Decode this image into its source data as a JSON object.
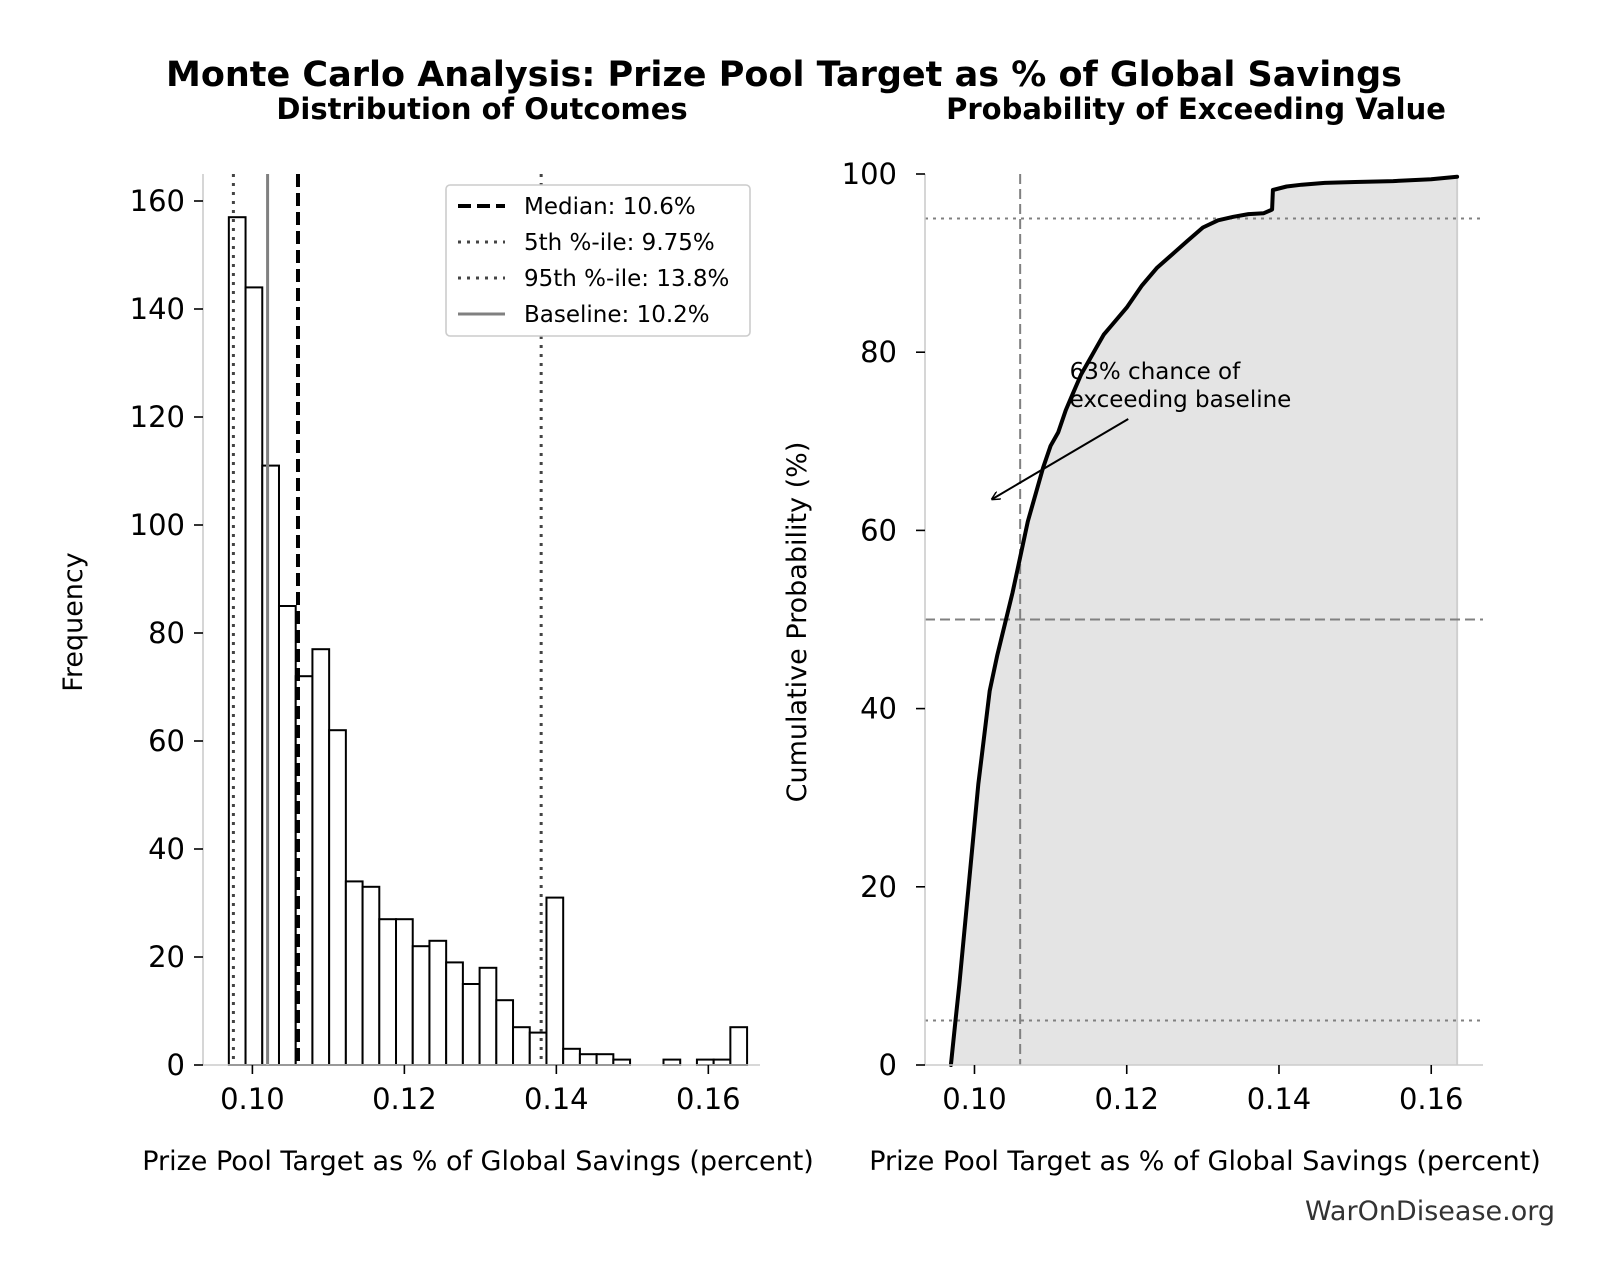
{
  "figure": {
    "title": "Monte Carlo Analysis: Prize Pool Target as % of Global Savings",
    "watermark": "WarOnDisease.org"
  },
  "chart_data": [
    {
      "type": "bar",
      "kind": "histogram",
      "title": "Distribution of Outcomes",
      "xlabel": "Prize Pool Target as % of Global Savings (percent)",
      "ylabel": "Frequency",
      "xlim": [
        0.0935,
        0.1668
      ],
      "ylim": [
        0,
        165
      ],
      "x_ticks": [
        0.1,
        0.12,
        0.14,
        0.16
      ],
      "x_tick_labels": [
        "0.10",
        "0.12",
        "0.14",
        "0.16"
      ],
      "y_ticks": [
        0,
        20,
        40,
        60,
        80,
        100,
        120,
        140,
        160
      ],
      "y_tick_labels": [
        "0",
        "20",
        "40",
        "60",
        "80",
        "100",
        "120",
        "140",
        "160"
      ],
      "bin_start": 0.0969,
      "bin_width": 0.0022,
      "values": [
        157,
        144,
        111,
        85,
        72,
        77,
        62,
        34,
        33,
        27,
        27,
        22,
        23,
        19,
        15,
        18,
        12,
        7,
        6,
        31,
        3,
        2,
        2,
        1,
        0,
        0,
        1,
        0,
        1,
        1,
        7
      ],
      "reference_lines": [
        {
          "name": "median",
          "value": 0.106,
          "style": "dashed",
          "color": "#000000",
          "label": "Median: 10.6%"
        },
        {
          "name": "p5",
          "value": 0.0975,
          "style": "dotted",
          "color": "#444444",
          "label": "5th %-ile: 9.75%"
        },
        {
          "name": "p95",
          "value": 0.138,
          "style": "dotted",
          "color": "#444444",
          "label": "95th %-ile: 13.8%"
        },
        {
          "name": "baseline",
          "value": 0.102,
          "style": "solid",
          "color": "#808080",
          "label": "Baseline: 10.2%"
        }
      ],
      "legend_position": "top-right"
    },
    {
      "type": "area",
      "kind": "cumulative-probability",
      "title": "Probability of Exceeding Value",
      "xlabel": "Prize Pool Target as % of Global Savings (percent)",
      "ylabel": "Cumulative Probability (%)",
      "xlim": [
        0.0935,
        0.1668
      ],
      "ylim": [
        0,
        100
      ],
      "x_ticks": [
        0.1,
        0.12,
        0.14,
        0.16
      ],
      "x_tick_labels": [
        "0.10",
        "0.12",
        "0.14",
        "0.16"
      ],
      "y_ticks": [
        0,
        20,
        40,
        60,
        80,
        100
      ],
      "y_tick_labels": [
        "0",
        "20",
        "40",
        "60",
        "80",
        "100"
      ],
      "x": [
        0.0969,
        0.0975,
        0.098,
        0.0985,
        0.099,
        0.0995,
        0.1,
        0.1005,
        0.101,
        0.1015,
        0.102,
        0.103,
        0.104,
        0.105,
        0.106,
        0.107,
        0.108,
        0.109,
        0.11,
        0.111,
        0.112,
        0.113,
        0.114,
        0.115,
        0.116,
        0.117,
        0.118,
        0.12,
        0.122,
        0.124,
        0.126,
        0.128,
        0.13,
        0.132,
        0.134,
        0.136,
        0.138,
        0.1391,
        0.1392,
        0.141,
        0.143,
        0.146,
        0.15,
        0.155,
        0.16,
        0.1634
      ],
      "y": [
        0,
        5,
        9,
        13.5,
        18,
        22.5,
        27,
        31.5,
        35,
        38.5,
        42,
        46,
        49.5,
        53,
        57,
        61,
        64,
        67,
        69.5,
        71,
        73.5,
        75.5,
        77.5,
        79,
        80.5,
        82,
        83,
        85,
        87.5,
        89.5,
        91,
        92.5,
        94,
        94.8,
        95.2,
        95.5,
        95.6,
        96,
        98.2,
        98.6,
        98.8,
        99,
        99.1,
        99.2,
        99.4,
        99.7
      ],
      "reference_lines": [
        {
          "name": "baseline-vertical",
          "axis": "x",
          "value": 0.106,
          "style": "dashed",
          "color": "#808080"
        },
        {
          "name": "median-horizontal",
          "axis": "y",
          "value": 50,
          "style": "dashed",
          "color": "#808080"
        },
        {
          "name": "p95-horizontal",
          "axis": "y",
          "value": 95,
          "style": "dotted",
          "color": "#808080"
        },
        {
          "name": "p5-horizontal",
          "axis": "y",
          "value": 5,
          "style": "dotted",
          "color": "#808080"
        }
      ],
      "annotation": {
        "lines": [
          "63% chance of",
          "exceeding baseline"
        ],
        "text_at": [
          0.1125,
          77
        ],
        "arrow_from": [
          0.1202,
          72.5
        ],
        "arrow_to": [
          0.1023,
          63.5
        ]
      }
    }
  ]
}
